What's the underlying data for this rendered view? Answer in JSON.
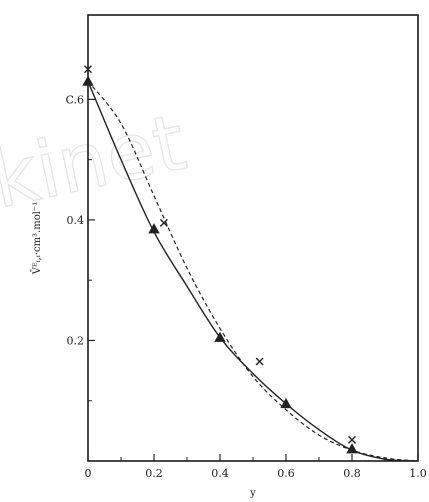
{
  "chart_data": {
    "type": "line",
    "title": "",
    "xlabel": "y",
    "ylabel": "V̄ᴱᵢ,ᵢ·cm³.mol⁻¹",
    "xlim": [
      0,
      1.0
    ],
    "ylim": [
      0,
      0.74
    ],
    "x_tick_labels": [
      "0",
      "0.2",
      "0.4",
      "0.6",
      "0.8",
      "1.0"
    ],
    "x_tick_values": [
      0,
      0.2,
      0.4,
      0.6,
      0.8,
      1.0
    ],
    "y_tick_labels": [
      "0.2",
      "0.4",
      "C.6"
    ],
    "y_tick_values": [
      0.2,
      0.4,
      0.6
    ],
    "grid": false,
    "series": [
      {
        "style": "solid",
        "x": [
          0,
          0.1,
          0.2,
          0.3,
          0.4,
          0.5,
          0.6,
          0.7,
          0.8,
          0.9,
          1.0
        ],
        "y": [
          0.63,
          0.5,
          0.38,
          0.29,
          0.205,
          0.145,
          0.095,
          0.052,
          0.018,
          0.003,
          0
        ]
      },
      {
        "style": "dashed",
        "x": [
          0,
          0.1,
          0.2,
          0.3,
          0.4,
          0.5,
          0.6,
          0.7,
          0.8,
          0.9,
          1.0
        ],
        "y": [
          0.63,
          0.56,
          0.44,
          0.32,
          0.22,
          0.14,
          0.085,
          0.043,
          0.018,
          0.005,
          0
        ]
      }
    ],
    "triangles": {
      "x": [
        0,
        0.2,
        0.4,
        0.6,
        0.8
      ],
      "y": [
        0.63,
        0.385,
        0.205,
        0.095,
        0.02
      ]
    },
    "crosses": {
      "x": [
        0,
        0.23,
        0.52,
        0.8
      ],
      "y": [
        0.65,
        0.395,
        0.165,
        0.035
      ]
    }
  },
  "watermark": "kinet",
  "colors": {
    "ink": "#222222",
    "frame": "#1a1a1a"
  }
}
